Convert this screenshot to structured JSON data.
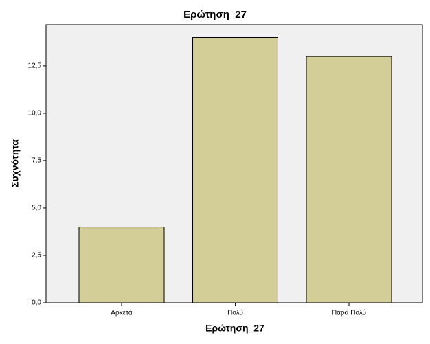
{
  "chart_data": {
    "type": "bar",
    "title": "Ερώτηση_27",
    "x_label": "Ερώτηση_27",
    "y_label": "Συχνότητα",
    "categories": [
      "Αρκετά",
      "Πολύ",
      "Πάρα Πολύ"
    ],
    "values": [
      4,
      14,
      13
    ],
    "color": "#d3ce97",
    "ylim": [
      0,
      14.67
    ],
    "yticks": [
      {
        "value": 0,
        "label": "0,0"
      },
      {
        "value": 2.5,
        "label": "2,5"
      },
      {
        "value": 5,
        "label": "5,0"
      },
      {
        "value": 7.5,
        "label": "7,5"
      },
      {
        "value": 10,
        "label": "10,0"
      },
      {
        "value": 12.5,
        "label": "12,5"
      }
    ]
  }
}
